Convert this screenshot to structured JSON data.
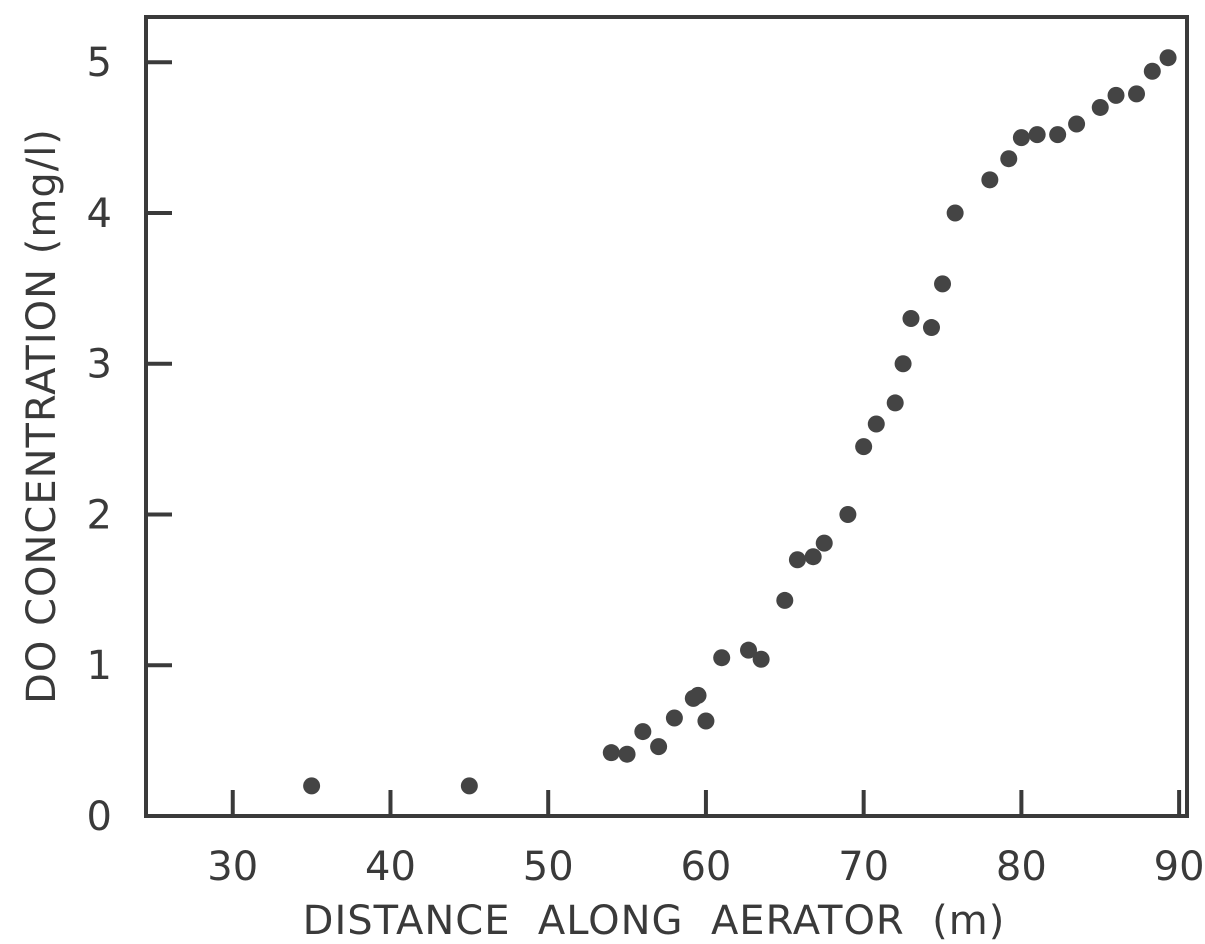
{
  "chart_data": {
    "type": "scatter",
    "title": "",
    "xlabel": "DISTANCE  ALONG  AERATOR  (m)",
    "ylabel": "DO CONCENTRATION (mg/l)",
    "xlim": [
      24.5,
      90.5
    ],
    "ylim": [
      0,
      5.3
    ],
    "x_ticks": [
      "30",
      "40",
      "50",
      "60",
      "70",
      "80",
      "90"
    ],
    "y_ticks": [
      "0",
      "1",
      "2",
      "3",
      "4",
      "5"
    ],
    "grid": false,
    "legend": "none",
    "marker_color": "#444444",
    "series": [
      {
        "x": [
          35,
          45,
          54,
          55,
          56,
          57,
          58,
          59.2,
          59.5,
          60,
          61,
          62.7,
          63.5,
          65,
          65.8,
          66.8,
          67.5,
          69,
          70,
          70.8,
          72,
          72.5,
          73,
          74.3,
          75,
          75.8,
          78,
          79.2,
          80,
          81,
          82.3,
          83.5,
          85,
          86,
          87.3,
          88.3,
          89.3
        ],
        "y": [
          0.2,
          0.2,
          0.42,
          0.41,
          0.56,
          0.46,
          0.65,
          0.78,
          0.8,
          0.63,
          1.05,
          1.1,
          1.04,
          1.43,
          1.7,
          1.72,
          1.81,
          2.0,
          2.45,
          2.6,
          2.74,
          3.0,
          3.3,
          3.24,
          3.53,
          4.0,
          4.22,
          4.36,
          4.5,
          4.52,
          4.52,
          4.59,
          4.7,
          4.78,
          4.79,
          4.94,
          5.03
        ]
      }
    ]
  }
}
